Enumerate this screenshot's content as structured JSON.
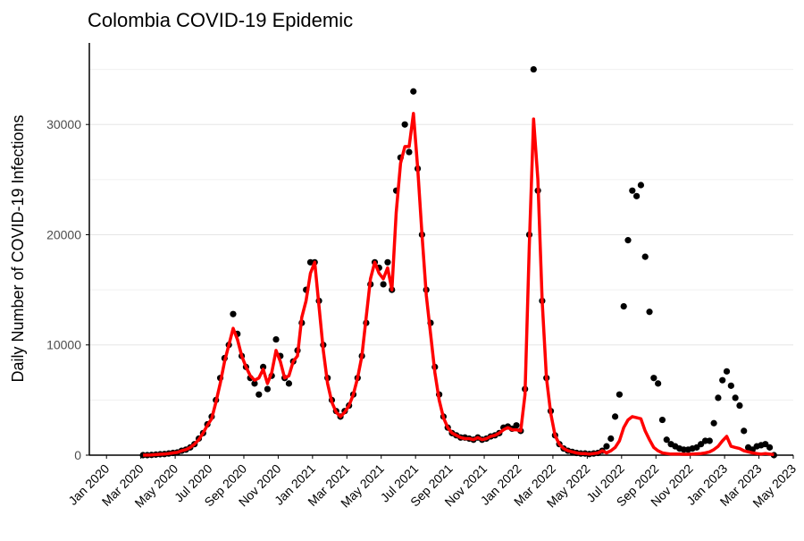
{
  "chart_data": {
    "type": "scatter-line",
    "title": "Colombia COVID-19 Epidemic",
    "y_label": "Daily Number of COVID-19 Infections",
    "x": [
      "2020-03",
      "2020-04",
      "2020-05",
      "2020-06",
      "2020-07",
      "2020-08",
      "2020-09",
      "2020-10",
      "2020-11",
      "2020-12",
      "2021-01",
      "2021-02",
      "2021-03",
      "2021-04",
      "2021-05",
      "2021-06",
      "2021-07",
      "2021-08",
      "2021-09",
      "2021-10",
      "2021-11",
      "2021-12",
      "2022-01",
      "2022-02",
      "2022-03",
      "2022-04",
      "2022-05",
      "2022-06",
      "2022-07",
      "2022-08",
      "2022-09",
      "2022-10",
      "2022-11",
      "2022-12",
      "2023-01",
      "2023-02",
      "2023-03"
    ],
    "xlim": [
      "2019-12",
      "2023-05"
    ],
    "xticks": [
      {
        "value": "2020-01",
        "label": "Jan 2020"
      },
      {
        "value": "2020-03",
        "label": "Mar 2020"
      },
      {
        "value": "2020-05",
        "label": "May 2020"
      },
      {
        "value": "2020-07",
        "label": "Jul 2020"
      },
      {
        "value": "2020-09",
        "label": "Sep 2020"
      },
      {
        "value": "2020-11",
        "label": "Nov 2020"
      },
      {
        "value": "2021-01",
        "label": "Jan 2021"
      },
      {
        "value": "2021-03",
        "label": "Mar 2021"
      },
      {
        "value": "2021-05",
        "label": "May 2021"
      },
      {
        "value": "2021-07",
        "label": "Jul 2021"
      },
      {
        "value": "2021-09",
        "label": "Sep 2021"
      },
      {
        "value": "2021-11",
        "label": "Nov 2021"
      },
      {
        "value": "2022-01",
        "label": "Jan 2022"
      },
      {
        "value": "2022-03",
        "label": "Mar 2022"
      },
      {
        "value": "2022-05",
        "label": "May 2022"
      },
      {
        "value": "2022-07",
        "label": "Jul 2022"
      },
      {
        "value": "2022-09",
        "label": "Sep 2022"
      },
      {
        "value": "2022-11",
        "label": "Nov 2022"
      },
      {
        "value": "2023-01",
        "label": "Jan 2023"
      },
      {
        "value": "2023-03",
        "label": "Mar 2023"
      },
      {
        "value": "2023-05",
        "label": "May 2023"
      }
    ],
    "ylim": [
      0,
      37400
    ],
    "yticks": [
      0,
      10000,
      20000,
      30000
    ],
    "minor_yticks": [
      5000,
      15000,
      25000,
      35000
    ],
    "grid": true,
    "series": [
      {
        "kind": "points",
        "color": "#000000",
        "values": [
          [
            0,
            0,
            20,
            50
          ],
          [
            80,
            100,
            150,
            200
          ],
          [
            250,
            400,
            500,
            700
          ],
          [
            1000,
            1500,
            2000,
            2800
          ],
          [
            3500,
            5000,
            7000,
            8800
          ],
          [
            10000,
            12800,
            11000,
            9000
          ],
          [
            8000,
            7000,
            6500,
            5500
          ],
          [
            8000,
            6000,
            7200,
            10500
          ],
          [
            9000,
            7000,
            6500,
            8500
          ],
          [
            9500,
            12000,
            15000,
            17500
          ],
          [
            17500,
            14000,
            10000,
            7000
          ],
          [
            5000,
            4000,
            3500,
            4000
          ],
          [
            4500,
            5500,
            7000,
            9000
          ],
          [
            12000,
            15500,
            17500,
            17000
          ],
          [
            15500,
            17500,
            15000,
            24000
          ],
          [
            27000,
            30000,
            27500,
            33000
          ],
          [
            26000,
            20000,
            15000,
            12000
          ],
          [
            8000,
            5500,
            3500,
            2500
          ],
          [
            2000,
            1800,
            1600,
            1600
          ],
          [
            1500,
            1400,
            1600,
            1400
          ],
          [
            1500,
            1700,
            1800,
            2000
          ],
          [
            2500,
            2600,
            2400,
            2700
          ],
          [
            2200,
            6000,
            20000,
            35000
          ],
          [
            24000,
            14000,
            7000,
            4000
          ],
          [
            1800,
            1000,
            600,
            400
          ],
          [
            300,
            200,
            150,
            150
          ],
          [
            100,
            150,
            200,
            400
          ],
          [
            800,
            1500,
            3500,
            5500
          ],
          [
            13500,
            19500,
            24000,
            23500
          ],
          [
            24500,
            18000,
            13000,
            7000
          ],
          [
            6500,
            3200,
            1400,
            1000
          ],
          [
            800,
            600,
            500,
            500
          ],
          [
            600,
            700,
            1000,
            1300
          ],
          [
            1300,
            2900,
            5200,
            6800
          ],
          [
            7600,
            6300,
            5200,
            4500
          ],
          [
            2200,
            700,
            500,
            800
          ],
          [
            900,
            1000,
            700,
            0
          ]
        ]
      },
      {
        "kind": "line",
        "color": "#ff0000",
        "values": [
          [
            0,
            5,
            20,
            50
          ],
          [
            80,
            100,
            150,
            200
          ],
          [
            250,
            400,
            500,
            700
          ],
          [
            1000,
            1400,
            2000,
            2700
          ],
          [
            3300,
            4800,
            6500,
            8500
          ],
          [
            10000,
            11500,
            10500,
            9000
          ],
          [
            8000,
            7200,
            6800,
            7000
          ],
          [
            7800,
            6500,
            7500,
            9500
          ],
          [
            8500,
            7000,
            7200,
            8500
          ],
          [
            9000,
            12500,
            14000,
            16500
          ],
          [
            17500,
            13500,
            9500,
            6500
          ],
          [
            4800,
            3900,
            3500,
            3900
          ],
          [
            4500,
            5500,
            7000,
            9000
          ],
          [
            12500,
            16000,
            17500,
            16500
          ],
          [
            16000,
            17000,
            15000,
            22000
          ],
          [
            26500,
            28000,
            28000,
            31000
          ],
          [
            26000,
            20000,
            14500,
            11000
          ],
          [
            7500,
            5000,
            3400,
            2500
          ],
          [
            2000,
            1800,
            1600,
            1500
          ],
          [
            1500,
            1400,
            1600,
            1400
          ],
          [
            1500,
            1700,
            1800,
            2000
          ],
          [
            2300,
            2500,
            2300,
            2300
          ],
          [
            2200,
            5500,
            19000,
            30500
          ],
          [
            25000,
            14000,
            7000,
            3800
          ],
          [
            1800,
            1000,
            600,
            400
          ],
          [
            300,
            200,
            150,
            150
          ],
          [
            100,
            150,
            200,
            400
          ],
          [
            200,
            400,
            700,
            1300
          ],
          [
            2500,
            3200,
            3500,
            3400
          ],
          [
            3300,
            2200,
            1400,
            700
          ],
          [
            400,
            200,
            150,
            100
          ],
          [
            100,
            100,
            80,
            80
          ],
          [
            100,
            120,
            150,
            200
          ],
          [
            300,
            500,
            800,
            1300
          ],
          [
            1700,
            800,
            700,
            600
          ],
          [
            400,
            300,
            200,
            150
          ],
          [
            100,
            150,
            100,
            50
          ]
        ]
      }
    ]
  }
}
